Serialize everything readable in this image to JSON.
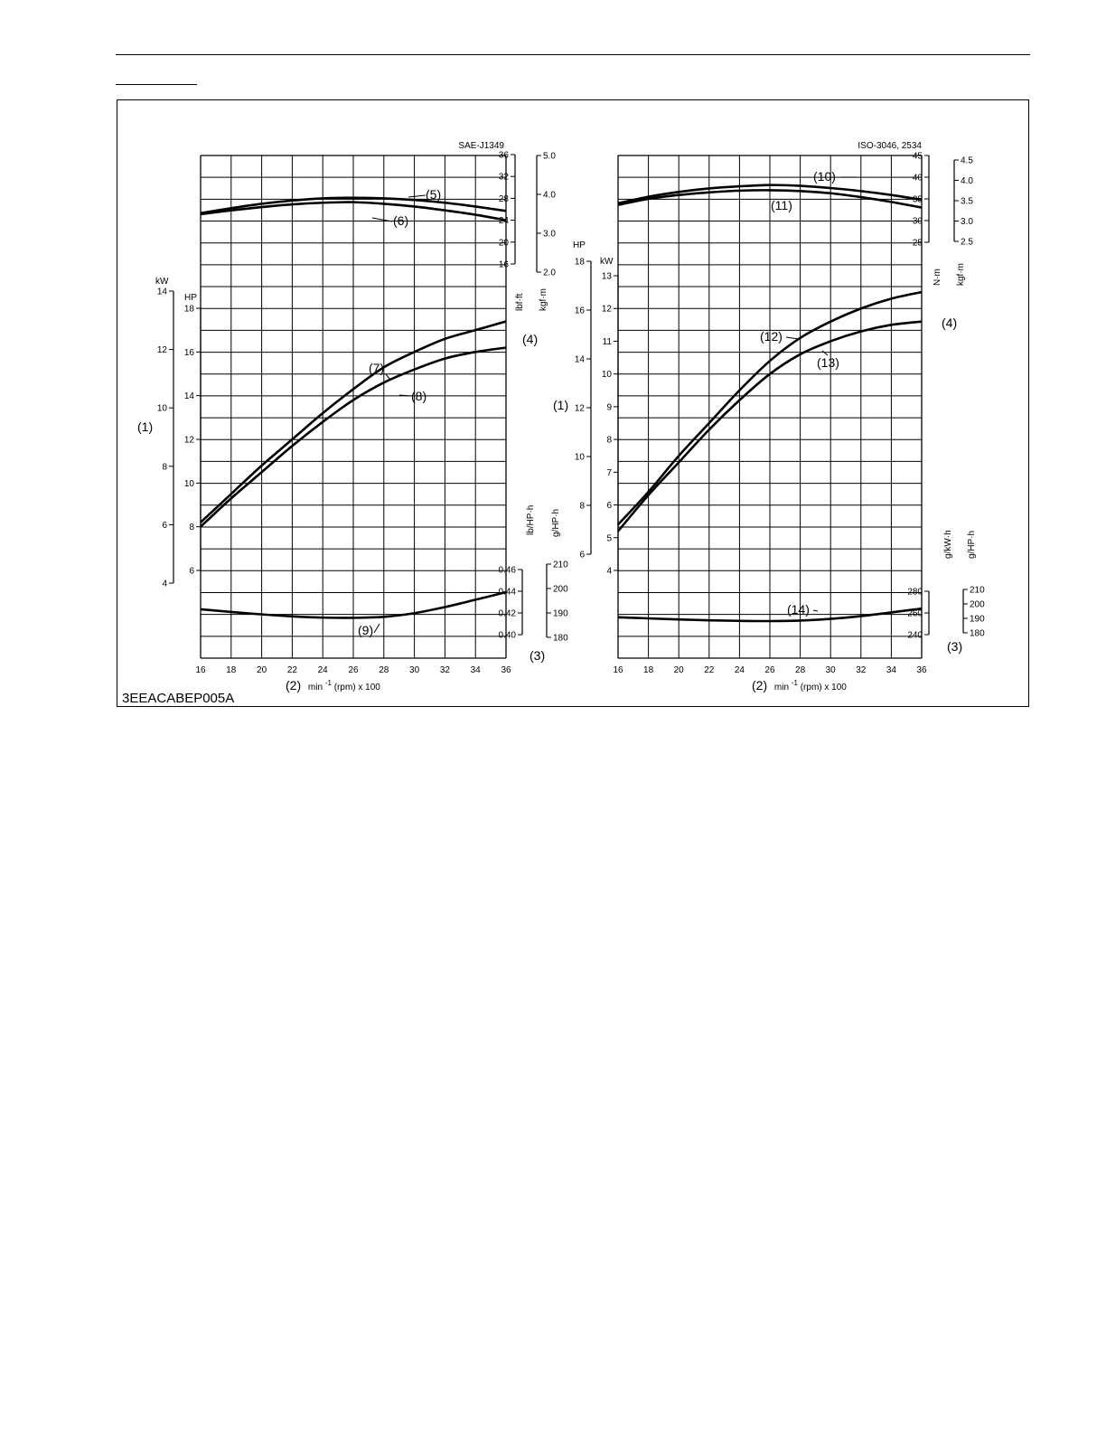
{
  "figure_id": "3EEACABEP005A",
  "chart_data": [
    {
      "type": "line",
      "title": "SAE-J1349",
      "x_ticks": [
        16,
        18,
        20,
        22,
        24,
        26,
        28,
        30,
        32,
        34,
        36
      ],
      "x_axis_label": {
        "num": "(2)",
        "text": "min",
        "sup": "-1",
        "suffix": " (rpm) x 100"
      },
      "xlim": [
        16,
        36
      ],
      "axes": {
        "torque_lbf_ft": {
          "unit": "lbf·ft",
          "ticks": [
            16,
            20,
            24,
            28,
            32,
            36
          ]
        },
        "torque_kgf_m": {
          "unit": "kgf·m",
          "ticks": [
            "2.0",
            "3.0",
            "4.0",
            "5.0"
          ]
        },
        "power_kw": {
          "unit": "kW",
          "ticks": [
            4,
            6,
            8,
            10,
            12,
            14
          ]
        },
        "power_hp": {
          "unit": "HP",
          "ticks": [
            6,
            8,
            10,
            12,
            14,
            16,
            18
          ]
        },
        "fuel_lb": {
          "unit": "lb/HP·h",
          "ticks": [
            "0.40",
            "0.42",
            "0.44",
            "0.46"
          ]
        },
        "fuel_g": {
          "unit": "g/HP·h",
          "ticks": [
            180,
            190,
            200,
            210
          ]
        }
      },
      "group_labels": {
        "power": "(1)",
        "fuel": "(3)",
        "torque": "(4)"
      },
      "series": [
        {
          "name": "(5)",
          "axis": "torque_lbf_ft",
          "x": [
            16,
            18,
            20,
            22,
            24,
            26,
            28,
            30,
            32,
            34,
            36
          ],
          "y": [
            25.3,
            26.2,
            27.0,
            27.6,
            28.0,
            28.1,
            28.0,
            27.7,
            27.2,
            26.5,
            25.7
          ]
        },
        {
          "name": "(6)",
          "axis": "torque_lbf_ft",
          "x": [
            16,
            18,
            20,
            22,
            24,
            26,
            28,
            30,
            32,
            34,
            36
          ],
          "y": [
            25.1,
            25.8,
            26.4,
            26.9,
            27.2,
            27.3,
            27.0,
            26.5,
            25.8,
            25.0,
            24.0
          ]
        },
        {
          "name": "(7)",
          "axis": "power_hp",
          "x": [
            16,
            18,
            20,
            22,
            24,
            26,
            28,
            30,
            32,
            34,
            36
          ],
          "y": [
            8.2,
            9.5,
            10.8,
            12.0,
            13.2,
            14.3,
            15.3,
            16.0,
            16.6,
            17.0,
            17.4
          ]
        },
        {
          "name": "(8)",
          "axis": "power_hp",
          "x": [
            16,
            18,
            20,
            22,
            24,
            26,
            28,
            30,
            32,
            34,
            36
          ],
          "y": [
            8.0,
            9.3,
            10.5,
            11.7,
            12.8,
            13.8,
            14.6,
            15.2,
            15.7,
            16.0,
            16.2
          ]
        },
        {
          "name": "(9)",
          "axis": "fuel_g",
          "x": [
            16,
            18,
            20,
            22,
            24,
            26,
            28,
            30,
            32,
            34,
            36
          ],
          "y": [
            191.5,
            190.4,
            189.4,
            188.6,
            188.1,
            188.0,
            188.4,
            189.9,
            192.4,
            195.4,
            198.5
          ]
        }
      ]
    },
    {
      "type": "line",
      "title": "ISO-3046, 2534",
      "x_ticks": [
        16,
        18,
        20,
        22,
        24,
        26,
        28,
        30,
        32,
        34,
        36
      ],
      "x_axis_label": {
        "num": "(2)",
        "text": "min",
        "sup": "-1",
        "suffix": " (rpm) x 100"
      },
      "xlim": [
        16,
        36
      ],
      "axes": {
        "torque_nm": {
          "unit": "N·m",
          "ticks": [
            25,
            30,
            35,
            40,
            45
          ]
        },
        "torque_kgf_m": {
          "unit": "kgf·m",
          "ticks": [
            "2.5",
            "3.0",
            "3.5",
            "4.0",
            "4.5"
          ]
        },
        "power_kw": {
          "unit": "kW",
          "ticks": [
            4,
            5,
            6,
            7,
            8,
            9,
            10,
            11,
            12,
            13
          ]
        },
        "power_hp": {
          "unit": "HP",
          "ticks": [
            6,
            8,
            10,
            12,
            14,
            16,
            18
          ]
        },
        "fuel_gkwh": {
          "unit": "g/kW·h",
          "ticks": [
            240,
            260,
            280
          ]
        },
        "fuel_ghph": {
          "unit": "g/HP·h",
          "ticks": [
            180,
            190,
            200,
            210
          ]
        }
      },
      "group_labels": {
        "power": "(1)",
        "fuel": "(3)",
        "torque": "(4)"
      },
      "series": [
        {
          "name": "(10)",
          "axis": "torque_nm",
          "x": [
            16,
            18,
            20,
            22,
            24,
            26,
            28,
            30,
            32,
            34,
            36
          ],
          "y": [
            34.0,
            35.5,
            36.6,
            37.4,
            37.9,
            38.2,
            38.0,
            37.5,
            36.8,
            35.9,
            34.8
          ]
        },
        {
          "name": "(11)",
          "axis": "torque_nm",
          "x": [
            16,
            18,
            20,
            22,
            24,
            26,
            28,
            30,
            32,
            34,
            36
          ],
          "y": [
            33.6,
            35.0,
            35.9,
            36.5,
            36.9,
            37.0,
            36.8,
            36.3,
            35.4,
            34.3,
            33.0
          ]
        },
        {
          "name": "(12)",
          "axis": "power_kw",
          "x": [
            16,
            18,
            20,
            22,
            24,
            26,
            28,
            30,
            32,
            34,
            36
          ],
          "y": [
            5.4,
            6.4,
            7.5,
            8.5,
            9.5,
            10.4,
            11.1,
            11.6,
            12.0,
            12.3,
            12.5
          ]
        },
        {
          "name": "(13)",
          "axis": "power_kw",
          "x": [
            16,
            18,
            20,
            22,
            24,
            26,
            28,
            30,
            32,
            34,
            36
          ],
          "y": [
            5.2,
            6.3,
            7.3,
            8.3,
            9.2,
            10.0,
            10.6,
            11.0,
            11.3,
            11.5,
            11.6
          ]
        },
        {
          "name": "(14)",
          "axis": "fuel_gkwh",
          "x": [
            16,
            18,
            20,
            22,
            24,
            26,
            28,
            30,
            32,
            34,
            36
          ],
          "y": [
            256.0,
            255.0,
            254.0,
            253.2,
            252.7,
            252.5,
            253.0,
            254.5,
            257.0,
            260.5,
            264.0
          ]
        }
      ]
    }
  ]
}
